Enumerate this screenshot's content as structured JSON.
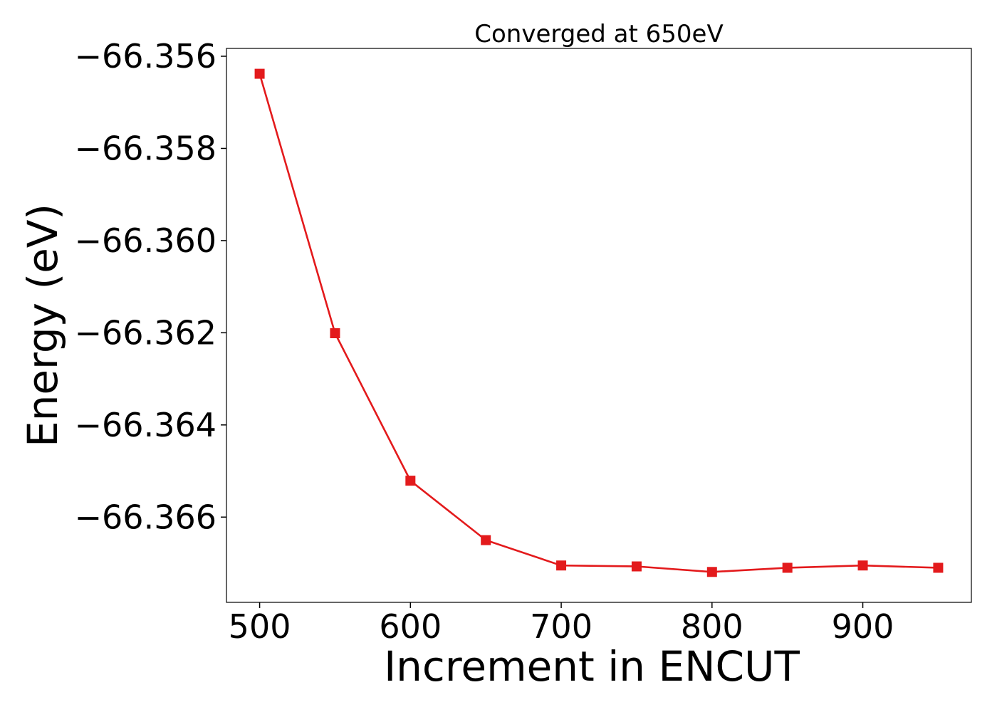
{
  "chart_data": {
    "type": "line",
    "title": "Converged at 650eV",
    "xlabel": "Increment in ENCUT",
    "ylabel": "Energy (eV)",
    "xlim": [
      478,
      972
    ],
    "ylim": [
      -66.36785,
      -66.35583
    ],
    "x_ticks": [
      500,
      600,
      700,
      800,
      900
    ],
    "x_tick_labels": [
      "500",
      "600",
      "700",
      "800",
      "900"
    ],
    "y_ticks": [
      -66.356,
      -66.358,
      -66.36,
      -66.362,
      -66.364,
      -66.366
    ],
    "y_tick_labels": [
      "−66.356",
      "−66.358",
      "−66.360",
      "−66.362",
      "−66.364",
      "−66.366"
    ],
    "grid": false,
    "legend": "none",
    "marker": "square",
    "color": "#e31a1c",
    "series": [
      {
        "x": [
          500,
          550,
          600,
          650,
          700,
          750,
          800,
          850,
          900,
          950
        ],
        "values": [
          -66.35638,
          -66.36201,
          -66.36521,
          -66.3665,
          -66.36705,
          -66.36707,
          -66.36719,
          -66.3671,
          -66.36705,
          -66.3671
        ]
      }
    ]
  }
}
